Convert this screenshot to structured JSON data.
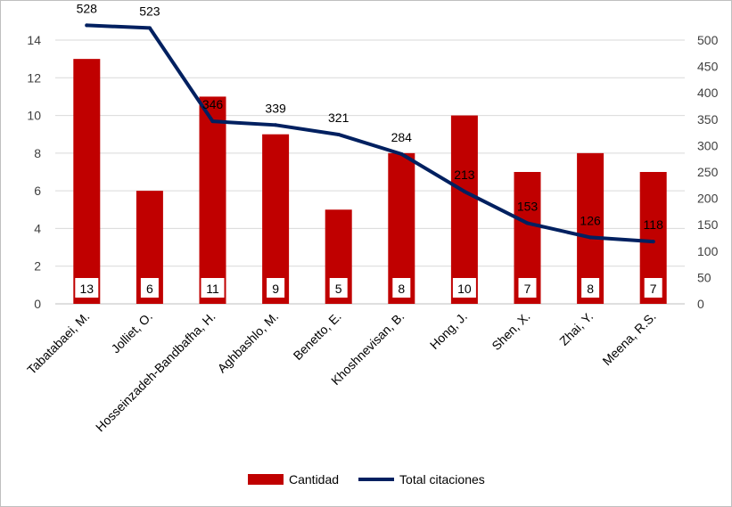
{
  "chart_data": {
    "type": "bar",
    "categories": [
      "Tabatabaei, M.",
      "Jolliet, O.",
      "Hosseinzadeh-Bandbafha, H.",
      "Aghbashlo, M.",
      "Benetto, E.",
      "Khoshnevisan, B.",
      "Hong, J.",
      "Shen, X.",
      "Zhai, Y.",
      "Meena, R.S."
    ],
    "series": [
      {
        "name": "Cantidad",
        "type": "bar",
        "axis": "left",
        "values": [
          13,
          6,
          11,
          9,
          5,
          8,
          10,
          7,
          8,
          7
        ],
        "color": "#C00000"
      },
      {
        "name": "Total citaciones",
        "type": "line",
        "axis": "right",
        "values": [
          528,
          523,
          346,
          339,
          321,
          284,
          213,
          153,
          126,
          118
        ],
        "color": "#002060"
      }
    ],
    "y_left": {
      "lim": [
        0,
        14
      ],
      "ticks": [
        0,
        2,
        4,
        6,
        8,
        10,
        12,
        14
      ]
    },
    "y_right": {
      "lim": [
        0,
        500
      ],
      "ticks": [
        0,
        50,
        100,
        150,
        200,
        250,
        300,
        350,
        400,
        450,
        500
      ]
    },
    "grid": true,
    "legend": "bottom",
    "title": "",
    "xlabel": "",
    "ylabel": ""
  },
  "legend": {
    "bar_label": "Cantidad",
    "line_label": "Total citaciones"
  }
}
